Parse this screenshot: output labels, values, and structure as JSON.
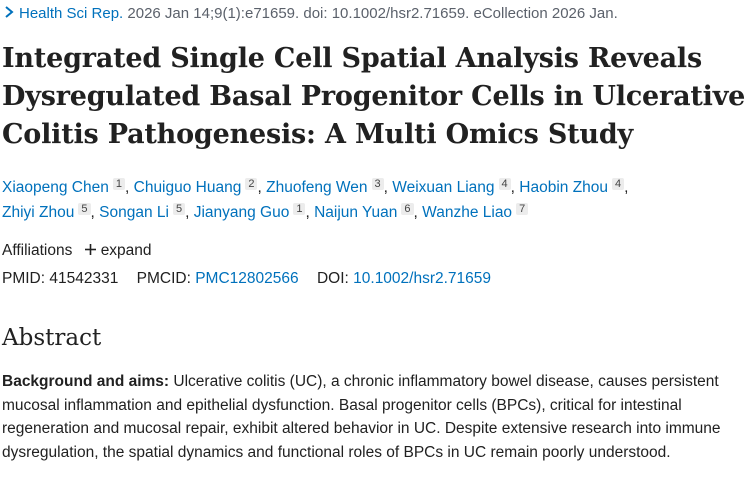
{
  "citation": {
    "journal": "Health Sci Rep.",
    "details": "2026 Jan 14;9(1):e71659. doi: 10.1002/hsr2.71659. eCollection 2026 Jan."
  },
  "title": "Integrated Single Cell Spatial Analysis Reveals Dysregulated Basal Progenitor Cells in Ulcerative Colitis Pathogenesis: A Multi Omics Study",
  "authors": [
    {
      "name": "Xiaopeng Chen",
      "aff": "1"
    },
    {
      "name": "Chuiguo Huang",
      "aff": "2"
    },
    {
      "name": "Zhuofeng Wen",
      "aff": "3"
    },
    {
      "name": "Weixuan Liang",
      "aff": "4"
    },
    {
      "name": "Haobin Zhou",
      "aff": "4"
    },
    {
      "name": "Zhiyi Zhou",
      "aff": "5"
    },
    {
      "name": "Songan Li",
      "aff": "5"
    },
    {
      "name": "Jianyang Guo",
      "aff": "1"
    },
    {
      "name": "Naijun Yuan",
      "aff": "6"
    },
    {
      "name": "Wanzhe Liao",
      "aff": "7"
    }
  ],
  "affiliations": {
    "label": "Affiliations",
    "expand": "expand"
  },
  "ids": {
    "pmid_label": "PMID:",
    "pmid": "41542331",
    "pmcid_label": "PMCID:",
    "pmcid": "PMC12802566",
    "doi_label": "DOI:",
    "doi": "10.1002/hsr2.71659"
  },
  "abstract": {
    "heading": "Abstract",
    "section_label": "Background and aims:",
    "text": "Ulcerative colitis (UC), a chronic inflammatory bowel disease, causes persistent mucosal inflammation and epithelial dysfunction. Basal progenitor cells (BPCs), critical for intestinal regeneration and mucosal repair, exhibit altered behavior in UC. Despite extensive research into immune dysregulation, the spatial dynamics and functional roles of BPCs in UC remain poorly understood."
  }
}
